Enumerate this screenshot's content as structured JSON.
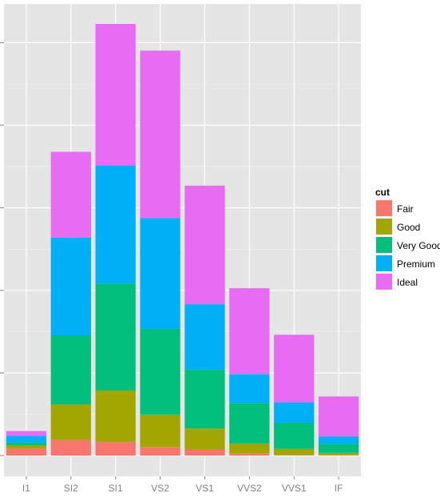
{
  "chart_data": {
    "type": "bar",
    "stacked": true,
    "title": "",
    "xlabel": "",
    "ylabel": "",
    "categories": [
      "I1",
      "SI2",
      "SI1",
      "VS2",
      "VS1",
      "VVS2",
      "VVS1",
      "IF"
    ],
    "series": [
      {
        "name": "Fair",
        "color": "#F8766D",
        "values": [
          210,
          466,
          408,
          261,
          170,
          69,
          17,
          9
        ]
      },
      {
        "name": "Good",
        "color": "#A3A500",
        "values": [
          96,
          1081,
          1560,
          978,
          648,
          286,
          186,
          71
        ]
      },
      {
        "name": "Very Good",
        "color": "#00BF7D",
        "values": [
          84,
          2100,
          3240,
          2591,
          1775,
          1235,
          789,
          268
        ]
      },
      {
        "name": "Premium",
        "color": "#00B0F6",
        "values": [
          205,
          2949,
          3575,
          3357,
          1989,
          870,
          616,
          230
        ]
      },
      {
        "name": "Ideal",
        "color": "#E76BF3",
        "values": [
          146,
          2598,
          4282,
          5071,
          3589,
          2606,
          2047,
          1212
        ]
      }
    ],
    "ylim": [
      0,
      13500
    ],
    "y_ticks": [
      0,
      2500,
      5000,
      7500,
      10000,
      12500
    ],
    "grid": true,
    "legend": {
      "title": "cut",
      "placement": "right"
    }
  }
}
